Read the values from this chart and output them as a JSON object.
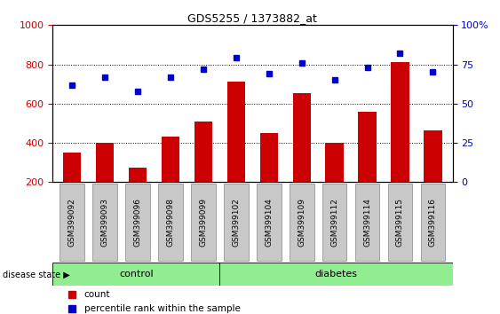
{
  "title": "GDS5255 / 1373882_at",
  "samples": [
    "GSM399092",
    "GSM399093",
    "GSM399096",
    "GSM399098",
    "GSM399099",
    "GSM399102",
    "GSM399104",
    "GSM399109",
    "GSM399112",
    "GSM399114",
    "GSM399115",
    "GSM399116"
  ],
  "counts": [
    350,
    400,
    275,
    430,
    510,
    710,
    450,
    655,
    400,
    560,
    810,
    465
  ],
  "percentiles": [
    62,
    67,
    58,
    67,
    72,
    79,
    69,
    76,
    65,
    73,
    82,
    70
  ],
  "n_control": 5,
  "n_diabetes": 7,
  "bar_color": "#cc0000",
  "dot_color": "#0000cc",
  "ylim_left": [
    200,
    1000
  ],
  "ylim_right": [
    0,
    100
  ],
  "yticks_left": [
    200,
    400,
    600,
    800,
    1000
  ],
  "yticks_right": [
    0,
    25,
    50,
    75,
    100
  ],
  "ytick_right_labels": [
    "0",
    "25",
    "50",
    "75",
    "100%"
  ],
  "control_color": "#90ee90",
  "diabetes_color": "#90ee90",
  "label_bg_color": "#c8c8c8",
  "legend_count_label": "count",
  "legend_pct_label": "percentile rank within the sample",
  "group_label": "disease state"
}
